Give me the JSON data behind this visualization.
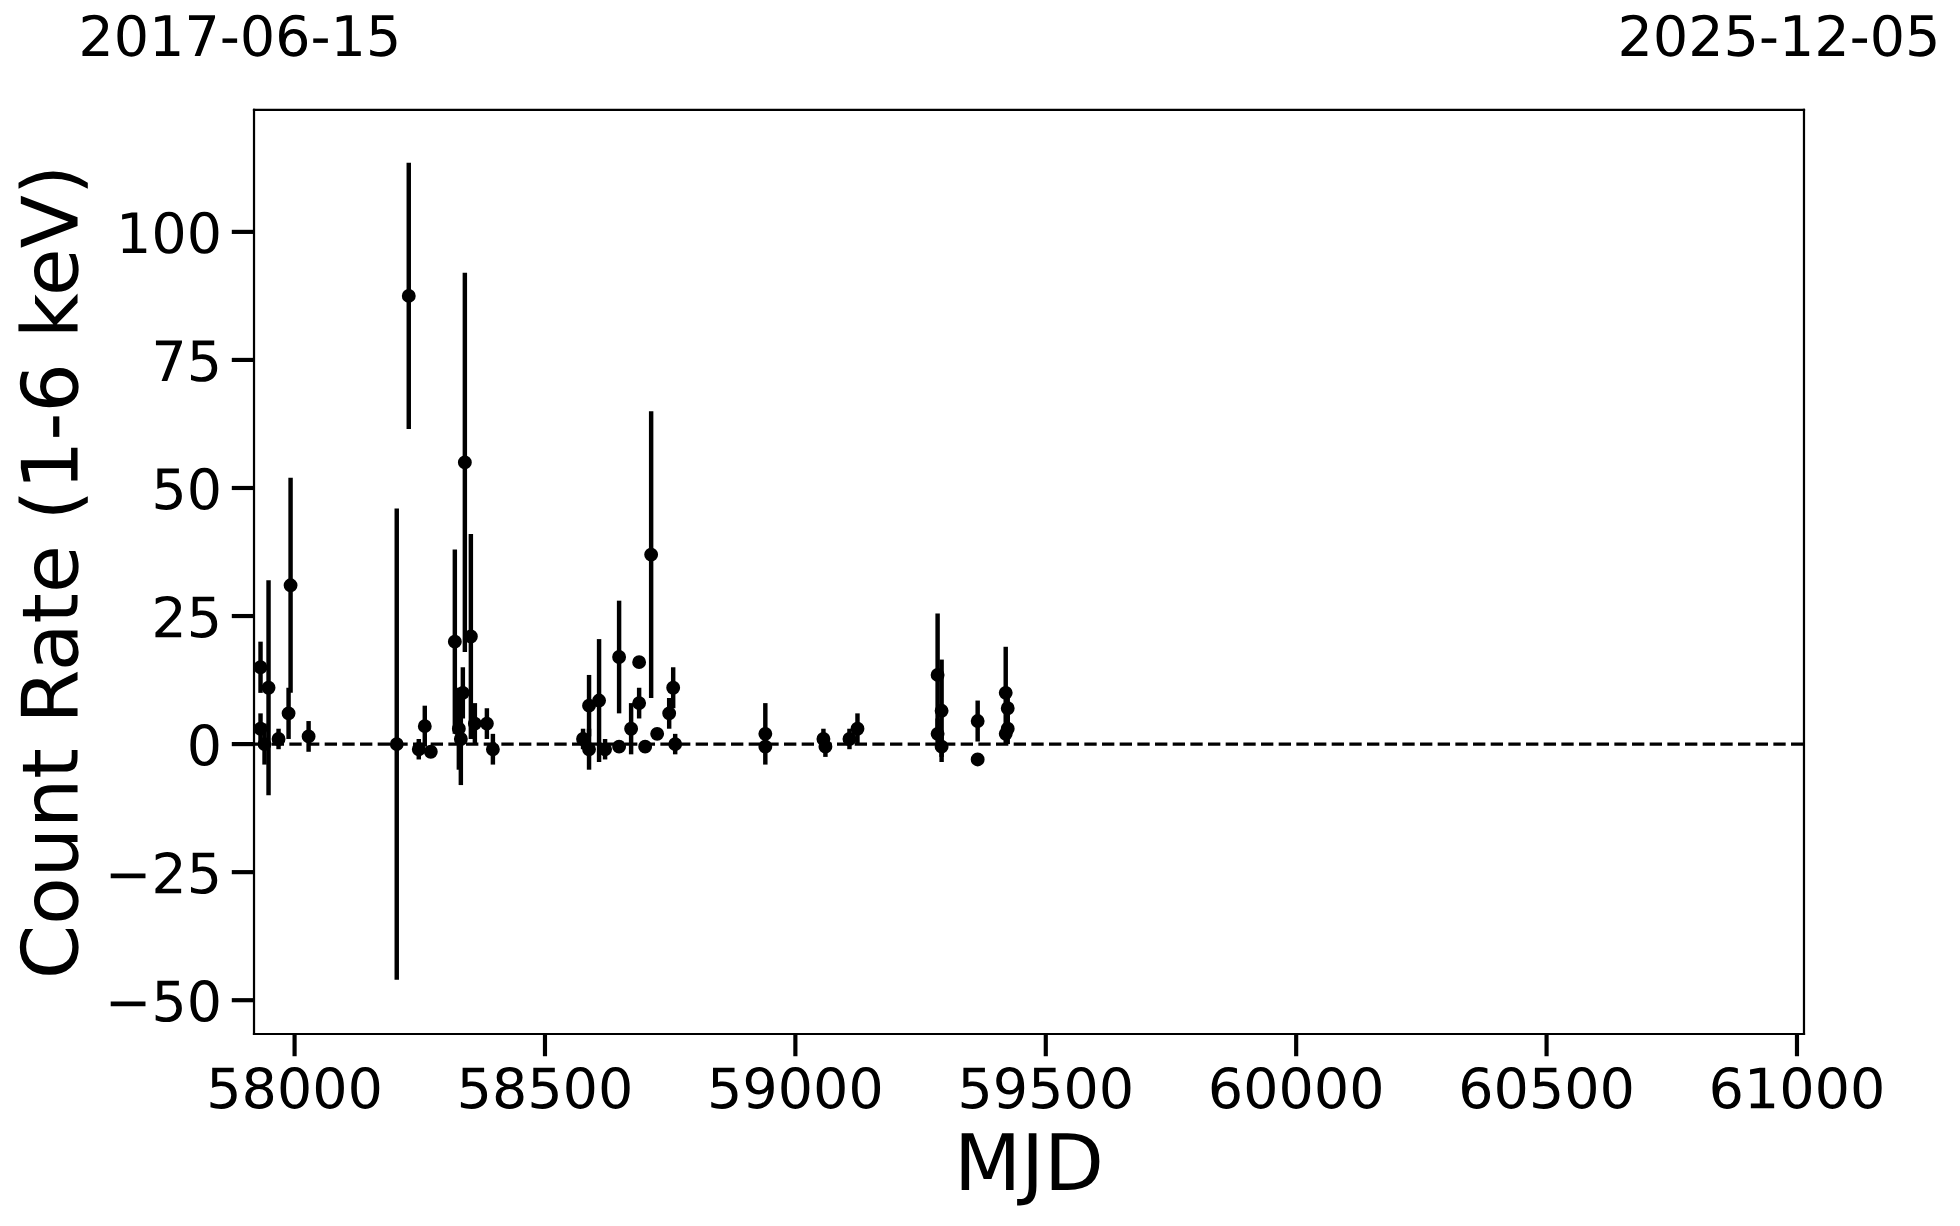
{
  "chart_data": {
    "type": "scatter",
    "xlabel": "MJD",
    "ylabel": "Count Rate (1-6 keV)",
    "xlim": [
      57919,
      61014
    ],
    "xticks": [
      58000,
      58500,
      59000,
      59500,
      60000,
      60500,
      61000
    ],
    "annotations": [
      "2017-06-15",
      "2025-12-05"
    ],
    "ylim": [
      -56.6,
      123.8
    ],
    "yticks": [
      -50,
      -25,
      0,
      25,
      50,
      75,
      100
    ],
    "grid": false,
    "marker": "circle",
    "ref_lines": [
      {
        "axis": "y",
        "value": 0,
        "color": "#000000",
        "line_style": "dashed"
      }
    ],
    "series": [
      {
        "color": "#000000",
        "x": [
          57932,
          57948,
          57932,
          57940,
          57988,
          57992,
          57968,
          58028,
          58204,
          58228,
          58248,
          58260,
          58272,
          58320,
          58340,
          58352,
          58336,
          58328,
          58332,
          58360,
          58384,
          58396,
          58588,
          58608,
          58648,
          58688,
          58688,
          58712,
          58756,
          58748,
          58576,
          58588,
          58620,
          58648,
          58672,
          58700,
          58724,
          58760,
          58940,
          58940,
          59056,
          59060,
          59108,
          59124,
          59284,
          59292,
          59284,
          59292,
          59364,
          59364,
          59420,
          59424,
          59424,
          59420
        ],
        "values": [
          15,
          11,
          3,
          0,
          6,
          31,
          1,
          1.5,
          0,
          87.5,
          -1,
          3.5,
          -1.5,
          20,
          55,
          21,
          10,
          3,
          1,
          4,
          4,
          -1,
          7.5,
          8.5,
          17,
          16,
          8,
          37,
          11,
          6,
          1,
          -1,
          -1,
          -0.5,
          3,
          -0.5,
          2,
          0,
          2,
          -0.5,
          1,
          -0.5,
          1,
          3,
          13.5,
          6.5,
          2,
          -0.5,
          4.5,
          -3,
          10,
          7,
          3,
          2
        ],
        "errors": [
          5,
          21,
          3,
          4,
          5,
          21,
          2,
          3,
          46,
          26,
          2,
          4,
          1,
          18,
          37,
          20,
          5,
          8,
          9,
          4,
          3,
          3,
          6,
          12,
          11,
          0.5,
          3,
          28,
          4,
          3,
          2,
          4,
          2,
          1,
          5,
          1,
          1,
          2,
          6,
          1,
          2,
          2,
          2,
          3,
          12,
          10,
          3,
          2,
          4,
          1,
          9,
          4,
          3,
          2
        ]
      }
    ]
  }
}
